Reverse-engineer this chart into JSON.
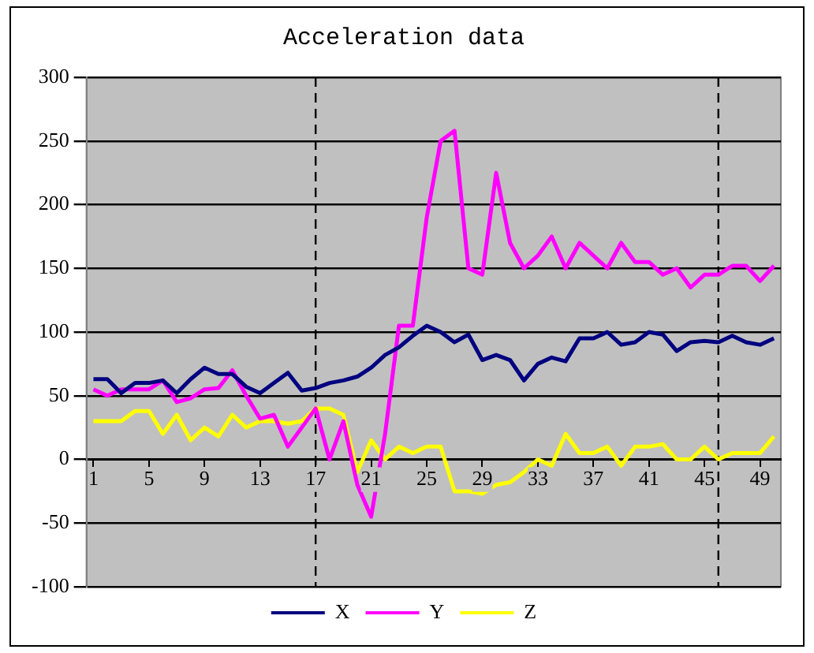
{
  "chart_data": {
    "type": "line",
    "title": "Acceleration data",
    "x": [
      1,
      2,
      3,
      4,
      5,
      6,
      7,
      8,
      9,
      10,
      11,
      12,
      13,
      14,
      15,
      16,
      17,
      18,
      19,
      20,
      21,
      22,
      23,
      24,
      25,
      26,
      27,
      28,
      29,
      30,
      31,
      32,
      33,
      34,
      35,
      36,
      37,
      38,
      39,
      40,
      41,
      42,
      43,
      44,
      45,
      46,
      47,
      48,
      49,
      50
    ],
    "series": [
      {
        "name": "X",
        "color": "#000080",
        "values": [
          63,
          63,
          52,
          60,
          60,
          62,
          52,
          63,
          72,
          67,
          67,
          57,
          52,
          60,
          68,
          54,
          56,
          60,
          62,
          65,
          72,
          82,
          88,
          97,
          105,
          100,
          92,
          98,
          78,
          82,
          78,
          62,
          75,
          80,
          77,
          95,
          95,
          100,
          90,
          92,
          100,
          98,
          85,
          92,
          93,
          92,
          97,
          92,
          90,
          95
        ]
      },
      {
        "name": "Y",
        "color": "#ff00ff",
        "values": [
          55,
          50,
          55,
          55,
          55,
          62,
          45,
          48,
          55,
          56,
          70,
          50,
          32,
          35,
          10,
          25,
          40,
          0,
          30,
          -20,
          -45,
          20,
          105,
          105,
          190,
          250,
          258,
          150,
          145,
          225,
          170,
          150,
          160,
          175,
          150,
          170,
          160,
          150,
          170,
          155,
          155,
          145,
          150,
          135,
          145,
          145,
          152,
          152,
          140,
          152
        ]
      },
      {
        "name": "Z",
        "color": "#ffff00",
        "values": [
          30,
          30,
          30,
          38,
          38,
          20,
          35,
          15,
          25,
          18,
          35,
          25,
          30,
          30,
          28,
          30,
          40,
          40,
          35,
          -10,
          15,
          0,
          10,
          5,
          10,
          10,
          -25,
          -25,
          -27,
          -20,
          -18,
          -10,
          0,
          -5,
          20,
          5,
          5,
          10,
          -5,
          10,
          10,
          12,
          0,
          0,
          10,
          0,
          5,
          5,
          5,
          18
        ]
      }
    ],
    "xlim": [
      0.5,
      50.5
    ],
    "xticks": [
      1,
      5,
      9,
      13,
      17,
      21,
      25,
      29,
      33,
      37,
      41,
      45,
      49
    ],
    "ylim": [
      -100,
      300
    ],
    "yticks": [
      -100,
      -50,
      0,
      50,
      100,
      150,
      200,
      250,
      300
    ],
    "ref_lines": [
      {
        "axis": "x",
        "value": 17,
        "color": "#000000",
        "line_style": "dashed"
      },
      {
        "axis": "x",
        "value": 46,
        "color": "#000000",
        "line_style": "dashed"
      }
    ],
    "grid": "y",
    "legend": "bottom",
    "marker": "none",
    "line_style": "solid"
  }
}
